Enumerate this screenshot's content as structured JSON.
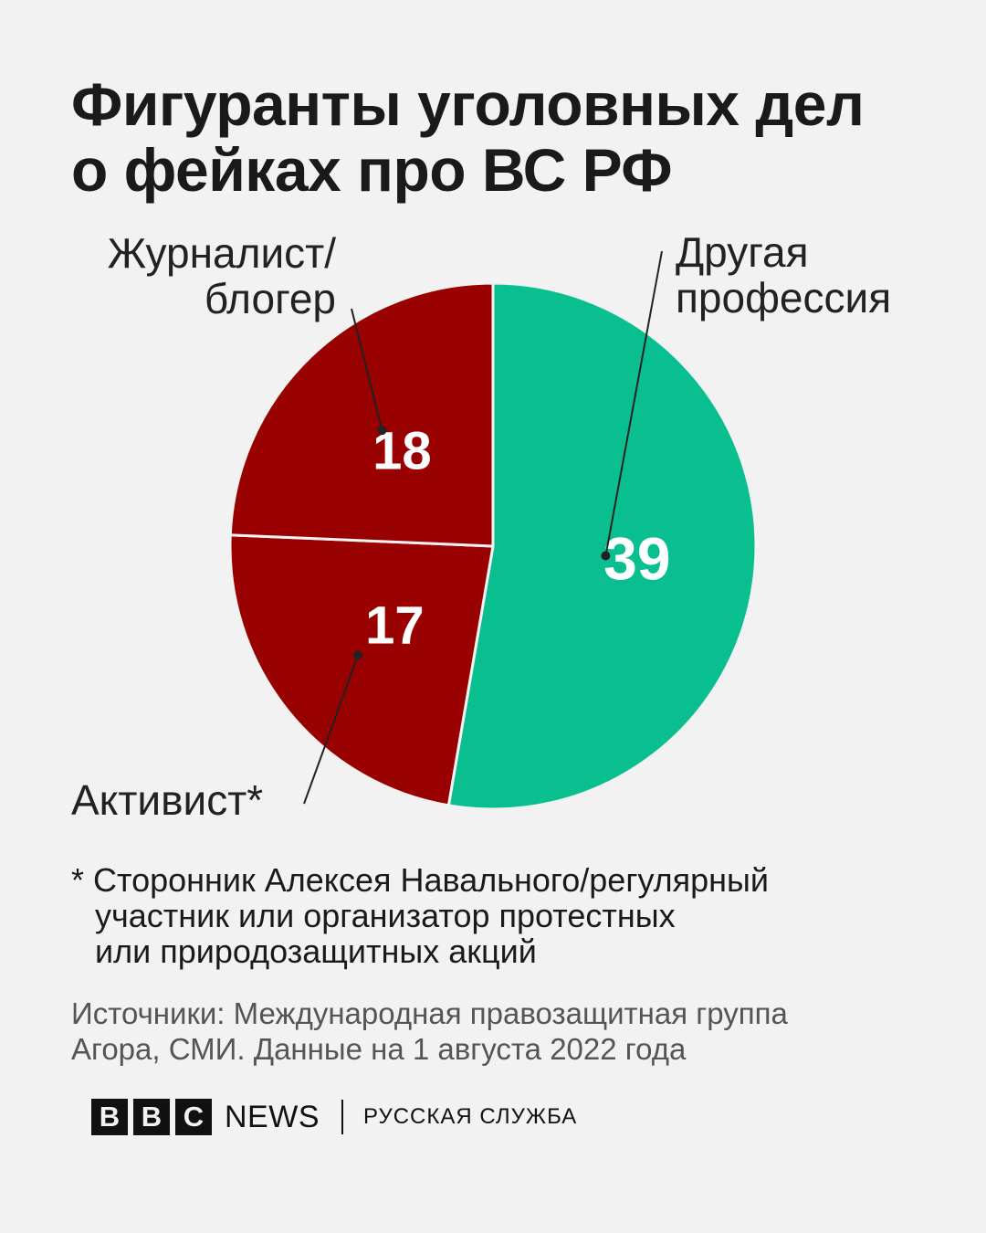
{
  "title": {
    "line1": "Фигуранты уголовных дел",
    "line2": "о фейках про ВС РФ"
  },
  "chart_data": {
    "type": "pie",
    "title": "Фигуранты уголовных дел о фейках про ВС РФ",
    "slices": [
      {
        "label_lines": [
          "Другая",
          "профессия"
        ],
        "value": 39,
        "color": "#0abf8f"
      },
      {
        "label_lines": [
          "Активист*"
        ],
        "value": 17,
        "color": "#990000"
      },
      {
        "label_lines": [
          "Журналист/",
          "блогер"
        ],
        "value": 18,
        "color": "#990000"
      }
    ]
  },
  "footnote": {
    "star": "*",
    "line1": "Сторонник Алексея Навального/регулярный",
    "line2": "участник или организатор протестных",
    "line3": "или природозащитных акций"
  },
  "sources": {
    "line1": "Источники: Международная правозащитная группа",
    "line2": "Агора, СМИ. Данные на 1 августа 2022 года"
  },
  "brand": {
    "bbc_letters": [
      "B",
      "B",
      "C"
    ],
    "news": "NEWS",
    "service": "РУССКАЯ СЛУЖБА"
  }
}
